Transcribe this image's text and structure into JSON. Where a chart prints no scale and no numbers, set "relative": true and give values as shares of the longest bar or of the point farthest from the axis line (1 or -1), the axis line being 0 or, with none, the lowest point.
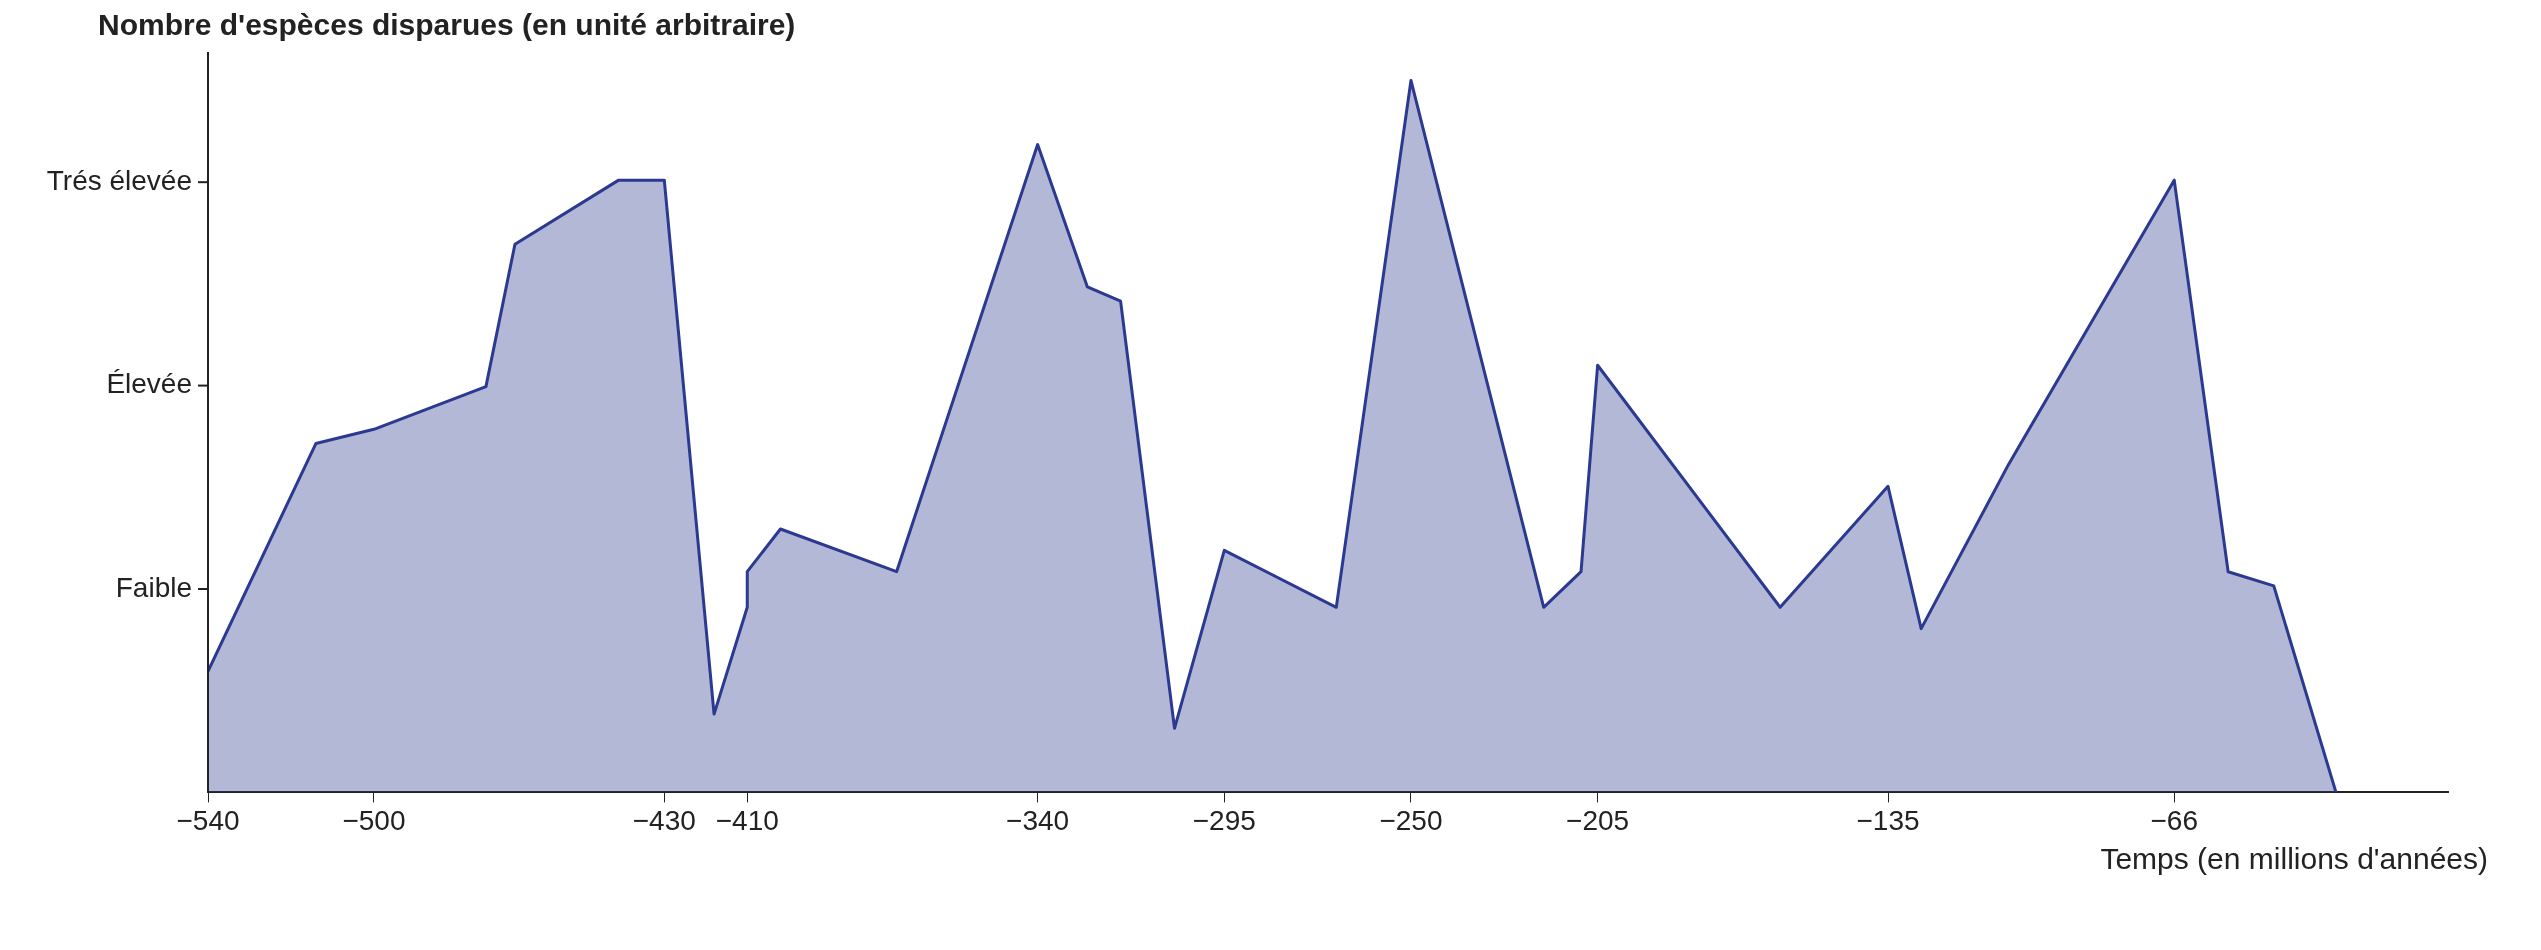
{
  "chart_data": {
    "type": "area",
    "relative": true,
    "ylabel": "Nombre d'espèces disparues (en unité arbitraire)",
    "xlabel": "Temps (en millions d'années)",
    "x": [
      -540,
      -514,
      -500,
      -473,
      -466,
      -441,
      -430,
      -418,
      -410,
      -410,
      -402,
      -374,
      -340,
      -328,
      -320,
      -307,
      -295,
      -268,
      -250,
      -218,
      -209,
      -205,
      -161,
      -135,
      -127,
      -106,
      -103,
      -66,
      -53,
      -42,
      -27
    ],
    "values": [
      0.17,
      0.49,
      0.51,
      0.57,
      0.77,
      0.86,
      0.86,
      0.11,
      0.26,
      0.31,
      0.37,
      0.31,
      0.91,
      0.71,
      0.69,
      0.09,
      0.34,
      0.26,
      1,
      0.26,
      0.31,
      0.6,
      0.26,
      0.43,
      0.23,
      0.46,
      0.49,
      0.86,
      0.31,
      0.29,
      0
    ],
    "color": "#2b3990",
    "xlim": [
      -540,
      0
    ],
    "xticks": [
      -540,
      -500,
      -430,
      -410,
      -340,
      -295,
      -250,
      -205,
      -135,
      -66
    ],
    "annotations": [
      "Faible",
      "Élevée",
      "Trés élevée"
    ]
  }
}
